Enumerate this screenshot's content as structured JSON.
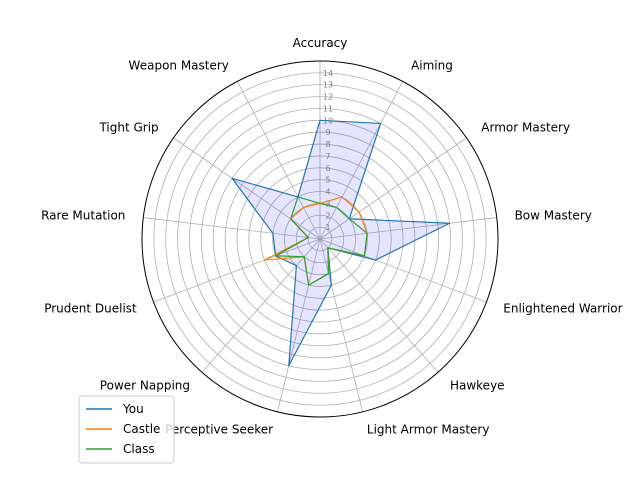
{
  "chart_data": {
    "type": "radar",
    "axes": [
      "Accuracy",
      "Aiming",
      "Armor Mastery",
      "Bow Mastery",
      "Enlightened Warrior",
      "Hawkeye",
      "Light Armor Mastery",
      "Perceptive Seeker",
      "Power Napping",
      "Prudent Duelist",
      "Rare Mutation",
      "Tight Grip",
      "Weapon Mastery"
    ],
    "radial_ticks": [
      1,
      2,
      3,
      4,
      5,
      6,
      7,
      8,
      9,
      10,
      11,
      12,
      13,
      14
    ],
    "rlim": [
      0,
      15
    ],
    "grid": true,
    "legend_position": "lower-left",
    "series": [
      {
        "name": "You",
        "color": "#1f77b4",
        "values": [
          10,
          11,
          3,
          11,
          5,
          1,
          4,
          11,
          3,
          4,
          4,
          9,
          4
        ],
        "fill": "#0000ff",
        "fill_opacity": 0.1
      },
      {
        "name": "Castle",
        "color": "#ff7f0e",
        "values": [
          3,
          4,
          4,
          4,
          4,
          1,
          3,
          4,
          2,
          5,
          1,
          3,
          3
        ]
      },
      {
        "name": "Class",
        "color": "#2ca02c",
        "values": [
          3,
          3,
          3,
          4,
          4,
          1,
          3,
          4,
          2,
          4,
          1,
          3,
          4
        ]
      }
    ]
  }
}
